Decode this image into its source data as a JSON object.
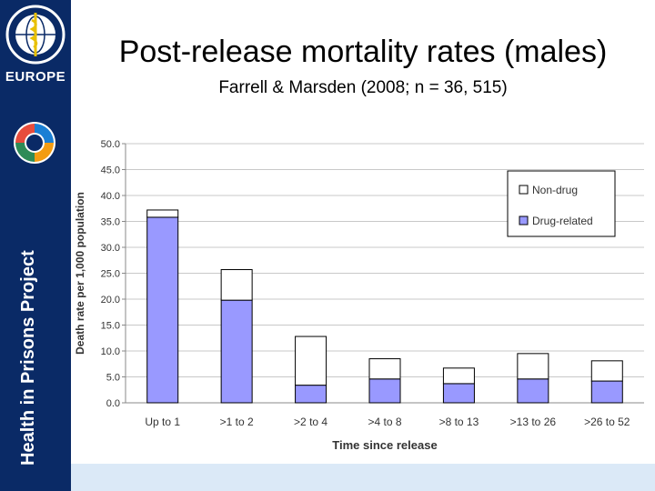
{
  "slide": {
    "title": "Post-release mortality rates (males)",
    "subtitle": "Farrell & Marsden (2008; n = 36, 515)",
    "sidebar_text": "Health in Prisons Project",
    "logo_region": "EUROPE"
  },
  "colors": {
    "sidebar": "#0a2a66",
    "drug_fill": "#9999ff",
    "nondrug_fill": "#ffffff",
    "bottom_band": "#dbe9f7"
  },
  "chart_data": {
    "type": "bar",
    "stacked": true,
    "categories": [
      "Up to 1",
      ">1 to 2",
      ">2 to 4",
      ">4 to 8",
      ">8 to 13",
      ">13 to 26",
      ">26 to 52"
    ],
    "series": [
      {
        "name": "Drug-related",
        "values": [
          35.8,
          19.8,
          3.4,
          4.6,
          3.7,
          4.6,
          4.2
        ]
      },
      {
        "name": "Non-drug",
        "values": [
          1.4,
          5.9,
          9.4,
          3.9,
          3.0,
          4.9,
          3.9
        ]
      }
    ],
    "yticks": [
      "0.0",
      "5.0",
      "10.0",
      "15.0",
      "20.0",
      "25.0",
      "30.0",
      "35.0",
      "40.0",
      "45.0",
      "50.0"
    ],
    "ylim": [
      0,
      50
    ],
    "xlabel": "Time since release",
    "ylabel": "Death rate per 1,000 population",
    "legend_position": "top-right",
    "legend": [
      "Non-drug",
      "Drug-related"
    ]
  }
}
